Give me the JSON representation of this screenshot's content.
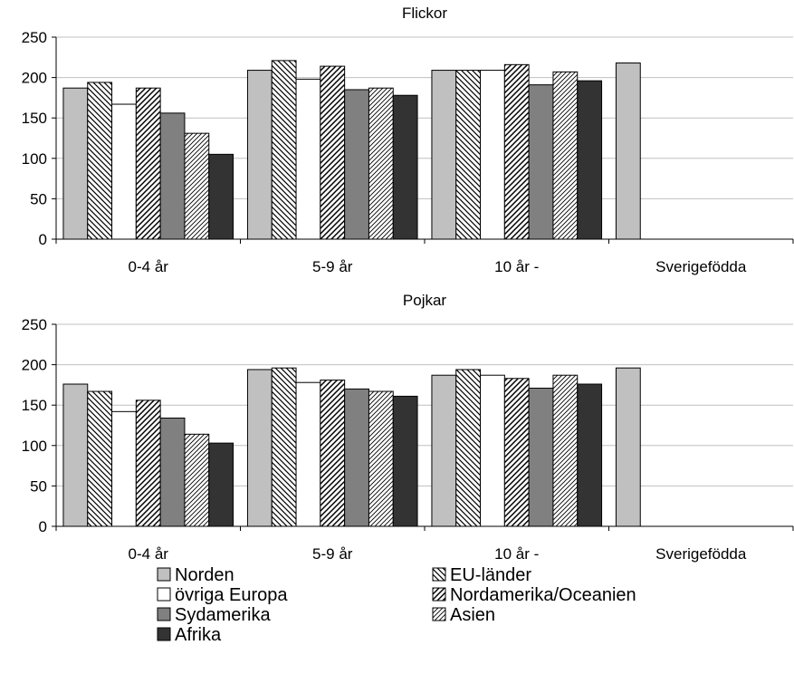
{
  "chart_data": [
    {
      "type": "bar",
      "title": "Flickor",
      "categories": [
        "0-4 år",
        "5-9 år",
        "10 år -",
        "Sverigefödda"
      ],
      "ylim": [
        0,
        250
      ],
      "yticks": [
        0,
        50,
        100,
        150,
        200,
        250
      ],
      "grid": true,
      "series": [
        {
          "name": "Norden",
          "values": [
            187,
            209,
            209,
            218
          ]
        },
        {
          "name": "EU-länder",
          "values": [
            194,
            221,
            209,
            null
          ]
        },
        {
          "name": "övriga Europa",
          "values": [
            167,
            198,
            209,
            null
          ]
        },
        {
          "name": "Nordamerika/Oceanien",
          "values": [
            187,
            214,
            216,
            null
          ]
        },
        {
          "name": "Sydamerika",
          "values": [
            156,
            185,
            191,
            null
          ]
        },
        {
          "name": "Asien",
          "values": [
            131,
            187,
            207,
            null
          ]
        },
        {
          "name": "Afrika",
          "values": [
            105,
            178,
            196,
            null
          ]
        }
      ]
    },
    {
      "type": "bar",
      "title": "Pojkar",
      "categories": [
        "0-4 år",
        "5-9 år",
        "10 år -",
        "Sverigefödda"
      ],
      "ylim": [
        0,
        250
      ],
      "yticks": [
        0,
        50,
        100,
        150,
        200,
        250
      ],
      "grid": true,
      "series": [
        {
          "name": "Norden",
          "values": [
            176,
            194,
            187,
            196
          ]
        },
        {
          "name": "EU-länder",
          "values": [
            167,
            196,
            194,
            null
          ]
        },
        {
          "name": "övriga Europa",
          "values": [
            142,
            178,
            187,
            null
          ]
        },
        {
          "name": "Nordamerika/Oceanien",
          "values": [
            156,
            181,
            183,
            null
          ]
        },
        {
          "name": "Sydamerika",
          "values": [
            134,
            170,
            171,
            null
          ]
        },
        {
          "name": "Asien",
          "values": [
            114,
            167,
            187,
            null
          ]
        },
        {
          "name": "Afrika",
          "values": [
            103,
            161,
            176,
            null
          ]
        }
      ]
    }
  ],
  "legend": {
    "placement": "bottom",
    "items": [
      {
        "label": "Norden",
        "pattern": "solid-light-gray"
      },
      {
        "label": "EU-länder",
        "pattern": "hatch-backslash"
      },
      {
        "label": "övriga Europa",
        "pattern": "solid-white"
      },
      {
        "label": "Nordamerika/Oceanien",
        "pattern": "hatch-slash"
      },
      {
        "label": "Sydamerika",
        "pattern": "solid-mid-gray"
      },
      {
        "label": "Asien",
        "pattern": "hatch-slash-fine"
      },
      {
        "label": "Afrika",
        "pattern": "solid-dark"
      }
    ]
  },
  "colors": {
    "Norden": "#c0c0c0",
    "övriga Europa": "#ffffff",
    "Sydamerika": "#808080",
    "Afrika": "#333333",
    "grid": "#c0c0c0",
    "axis": "#000000"
  }
}
